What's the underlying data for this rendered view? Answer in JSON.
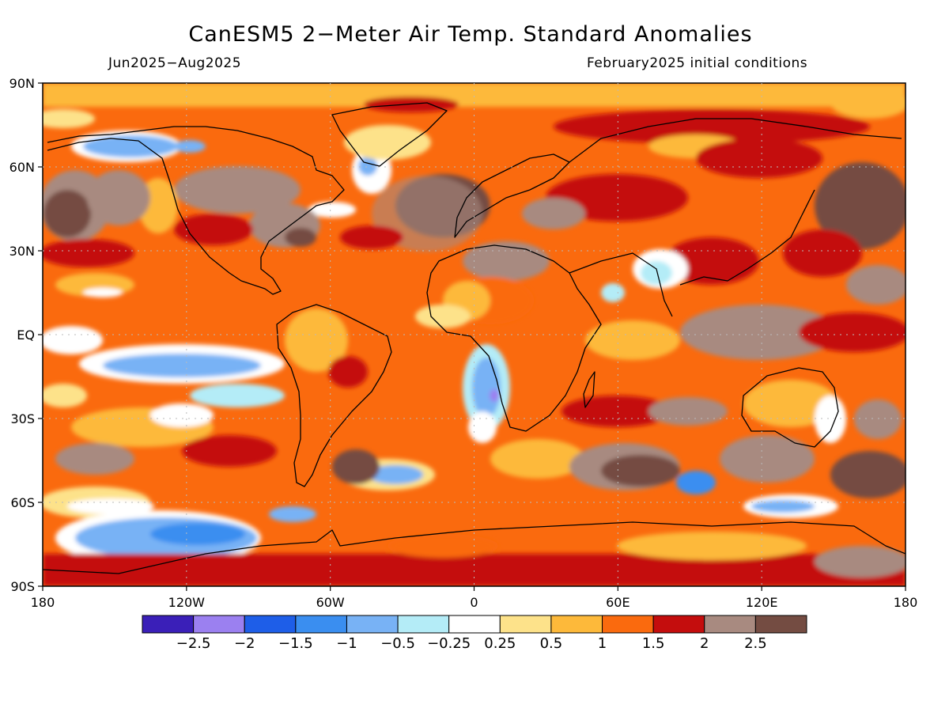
{
  "title": "CanESM5 2−Meter Air Temp. Standard Anomalies",
  "period": "Jun2025−Aug2025",
  "init": "February2025 initial conditions",
  "lat_labels": [
    "90N",
    "60N",
    "30N",
    "EQ",
    "30S",
    "60S",
    "90S"
  ],
  "lon_labels": [
    "180",
    "120W",
    "60W",
    "0",
    "60E",
    "120E",
    "180"
  ],
  "colorbar": {
    "colors": [
      "#3a1fb8",
      "#9b80f0",
      "#1e5ee8",
      "#3a8ef0",
      "#78b2f5",
      "#b4ecf7",
      "#ffffff",
      "#fde28a",
      "#fdb93a",
      "#fa6a0e",
      "#c40d0d",
      "#a88a80",
      "#744c42"
    ],
    "tick_labels": [
      "−2.5",
      "−2",
      "−1.5",
      "−1",
      "−0.5",
      "−0.25",
      "0.25",
      "0.5",
      "1",
      "1.5",
      "2",
      "2.5"
    ]
  },
  "land_color": "#000000",
  "ocean_base_color": "#fa6a0e"
}
